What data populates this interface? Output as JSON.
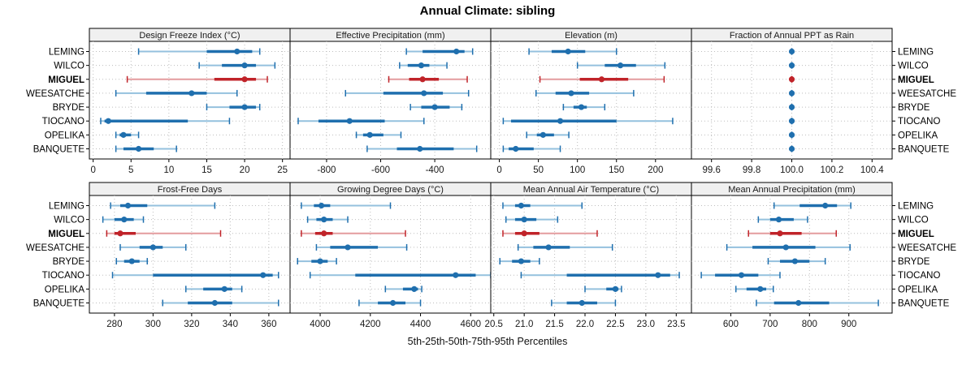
{
  "title": "Annual Climate: sibling",
  "caption": "5th-25th-50th-75th-95th Percentiles",
  "categories": [
    "LEMING",
    "WILCO",
    "MIGUEL",
    "WEESATCHE",
    "BRYDE",
    "TIOCANO",
    "OPELIKA",
    "BANQUETE"
  ],
  "highlight_category": "MIGUEL",
  "colors": {
    "series": "#1f6fae",
    "series_light": "#94c1de",
    "highlight": "#c02329",
    "highlight_light": "#e49c9e",
    "strip_bg": "#f0f0f0",
    "panel_border": "#000000",
    "grid": "#bdbdbd",
    "text": "#000000"
  },
  "chart_data": {
    "type": "dotplot",
    "statistic": "5th-25th-50th-75th-95th percentiles per site",
    "legend_position": "none",
    "grid": "dotted",
    "row_labels": [
      "LEMING",
      "WILCO",
      "MIGUEL",
      "WEESATCHE",
      "BRYDE",
      "TIOCANO",
      "OPELIKA",
      "BANQUETE"
    ],
    "panels": [
      {
        "title": "Design Freeze Index (°C)",
        "xlim": [
          -0.5,
          26
        ],
        "ticks": [
          0,
          5,
          10,
          15,
          20,
          25
        ],
        "tick_labels": [
          "0",
          "5",
          "10",
          "15",
          "20",
          "25"
        ],
        "values": {
          "LEMING": [
            6,
            15,
            19,
            21,
            22
          ],
          "WILCO": [
            14,
            17,
            20,
            21.5,
            24
          ],
          "MIGUEL": [
            4.5,
            16,
            20,
            21.5,
            23
          ],
          "WEESATCHE": [
            3,
            7,
            13,
            15,
            19
          ],
          "BRYDE": [
            15,
            18,
            20,
            21.5,
            22
          ],
          "TIOCANO": [
            1,
            1.5,
            2,
            12.5,
            18
          ],
          "OPELIKA": [
            3,
            3.5,
            4,
            5,
            6
          ],
          "BANQUETE": [
            3,
            4,
            6,
            8,
            11
          ]
        }
      },
      {
        "title": "Effective Precipitation (mm)",
        "xlim": [
          -935,
          -193
        ],
        "ticks": [
          -800,
          -600,
          -400
        ],
        "tick_labels": [
          "-800",
          "-600",
          "-400"
        ],
        "values": {
          "LEMING": [
            -505,
            -445,
            -320,
            -290,
            -260
          ],
          "WILCO": [
            -530,
            -500,
            -450,
            -420,
            -355
          ],
          "MIGUEL": [
            -570,
            -495,
            -445,
            -385,
            -280
          ],
          "WEESATCHE": [
            -730,
            -590,
            -440,
            -370,
            -275
          ],
          "BRYDE": [
            -490,
            -450,
            -400,
            -345,
            -300
          ],
          "TIOCANO": [
            -905,
            -830,
            -715,
            -585,
            -440
          ],
          "OPELIKA": [
            -690,
            -665,
            -640,
            -590,
            -525
          ],
          "BANQUETE": [
            -650,
            -540,
            -455,
            -330,
            -245
          ]
        }
      },
      {
        "title": "Elevation (m)",
        "xlim": [
          -11,
          246
        ],
        "ticks": [
          0,
          50,
          100,
          150,
          200
        ],
        "tick_labels": [
          "0",
          "50",
          "100",
          "150",
          "200"
        ],
        "values": {
          "LEMING": [
            38,
            67,
            88,
            110,
            150
          ],
          "WILCO": [
            100,
            135,
            155,
            175,
            212
          ],
          "MIGUEL": [
            52,
            103,
            131,
            165,
            211
          ],
          "WEESATCHE": [
            47,
            72,
            92,
            115,
            172
          ],
          "BRYDE": [
            82,
            95,
            105,
            112,
            135
          ],
          "TIOCANO": [
            5,
            15,
            78,
            150,
            222
          ],
          "OPELIKA": [
            35,
            48,
            56,
            70,
            89
          ],
          "BANQUETE": [
            5,
            12,
            21,
            44,
            78
          ]
        }
      },
      {
        "title": "Fraction of Annual PPT as Rain",
        "xlim": [
          99.5,
          100.5
        ],
        "ticks": [
          99.6,
          99.8,
          100.0,
          100.2,
          100.4
        ],
        "tick_labels": [
          "99.6",
          "99.8",
          "100.0",
          "100.2",
          "100.4"
        ],
        "values": {
          "LEMING": [
            100,
            100,
            100,
            100,
            100
          ],
          "WILCO": [
            100,
            100,
            100,
            100,
            100
          ],
          "MIGUEL": [
            100,
            100,
            100,
            100,
            100
          ],
          "WEESATCHE": [
            100,
            100,
            100,
            100,
            100
          ],
          "BRYDE": [
            100,
            100,
            100,
            100,
            100
          ],
          "TIOCANO": [
            100,
            100,
            100,
            100,
            100
          ],
          "OPELIKA": [
            100,
            100,
            100,
            100,
            100
          ],
          "BANQUETE": [
            100,
            100,
            100,
            100,
            100
          ]
        }
      },
      {
        "title": "Frost-Free Days",
        "xlim": [
          267,
          371
        ],
        "ticks": [
          280,
          300,
          320,
          340,
          360
        ],
        "tick_labels": [
          "280",
          "300",
          "320",
          "340",
          "360"
        ],
        "values": {
          "LEMING": [
            278,
            283,
            287,
            297,
            332
          ],
          "WILCO": [
            274,
            280,
            285,
            290,
            295
          ],
          "MIGUEL": [
            276,
            280,
            283,
            291,
            335
          ],
          "WEESATCHE": [
            283,
            293,
            300,
            305,
            317
          ],
          "BRYDE": [
            281,
            285,
            289,
            293,
            297
          ],
          "TIOCANO": [
            279,
            300,
            357,
            362,
            365
          ],
          "OPELIKA": [
            317,
            326,
            337,
            341,
            346
          ],
          "BANQUETE": [
            305,
            318,
            332,
            341,
            365
          ]
        }
      },
      {
        "title": "Growing Degree Days (°C)",
        "xlim": [
          3880,
          4680
        ],
        "ticks": [
          4000,
          4200,
          4400,
          4600
        ],
        "tick_labels": [
          "4000",
          "4200",
          "4400",
          "4600"
        ],
        "values": {
          "LEMING": [
            3925,
            3975,
            4005,
            4040,
            4280
          ],
          "WILCO": [
            3950,
            3985,
            4015,
            4050,
            4110
          ],
          "MIGUEL": [
            3925,
            3980,
            4015,
            4050,
            4340
          ],
          "WEESATCHE": [
            3985,
            4040,
            4110,
            4230,
            4345
          ],
          "BRYDE": [
            3910,
            3965,
            4000,
            4030,
            4065
          ],
          "TIOCANO": [
            3960,
            4140,
            4540,
            4620,
            4680
          ],
          "OPELIKA": [
            4260,
            4330,
            4375,
            4390,
            4405
          ],
          "BANQUETE": [
            4155,
            4230,
            4290,
            4340,
            4400
          ]
        }
      },
      {
        "title": "Mean Annual Air Temperature (°C)",
        "xlim": [
          20.45,
          23.75
        ],
        "ticks": [
          20.5,
          21.0,
          21.5,
          22.0,
          22.5,
          23.0,
          23.5
        ],
        "tick_labels": [
          "20.5",
          "21.0",
          "21.5",
          "22.0",
          "22.5",
          "23.0",
          "23.5"
        ],
        "values": {
          "LEMING": [
            20.65,
            20.85,
            20.95,
            21.1,
            21.95
          ],
          "WILCO": [
            20.7,
            20.85,
            21.0,
            21.2,
            21.55
          ],
          "MIGUEL": [
            20.65,
            20.85,
            21.0,
            21.25,
            22.2
          ],
          "WEESATCHE": [
            20.9,
            21.15,
            21.4,
            21.75,
            22.45
          ],
          "BRYDE": [
            20.6,
            20.8,
            20.95,
            21.1,
            21.25
          ],
          "TIOCANO": [
            20.95,
            21.7,
            23.2,
            23.4,
            23.55
          ],
          "OPELIKA": [
            22.0,
            22.35,
            22.5,
            22.55,
            22.6
          ],
          "BANQUETE": [
            21.45,
            21.7,
            21.95,
            22.2,
            22.5
          ]
        }
      },
      {
        "title": "Mean Annual Precipitation (mm)",
        "xlim": [
          500,
          1010
        ],
        "ticks": [
          600,
          700,
          800,
          900
        ],
        "tick_labels": [
          "600",
          "700",
          "800",
          "900"
        ],
        "values": {
          "LEMING": [
            710,
            775,
            840,
            870,
            905
          ],
          "WILCO": [
            670,
            700,
            722,
            760,
            795
          ],
          "MIGUEL": [
            645,
            700,
            725,
            780,
            868
          ],
          "WEESATCHE": [
            590,
            655,
            740,
            815,
            903
          ],
          "BRYDE": [
            695,
            725,
            763,
            800,
            840
          ],
          "TIOCANO": [
            525,
            560,
            627,
            670,
            725
          ],
          "OPELIKA": [
            613,
            640,
            675,
            690,
            708
          ],
          "BANQUETE": [
            665,
            710,
            772,
            850,
            975
          ]
        }
      }
    ]
  }
}
